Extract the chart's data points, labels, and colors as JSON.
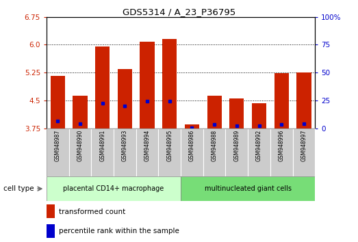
{
  "title": "GDS5314 / A_23_P36795",
  "samples": [
    "GSM948987",
    "GSM948990",
    "GSM948991",
    "GSM948993",
    "GSM948994",
    "GSM948995",
    "GSM948986",
    "GSM948988",
    "GSM948989",
    "GSM948992",
    "GSM948996",
    "GSM948997"
  ],
  "transformed_count": [
    5.17,
    4.62,
    5.96,
    5.35,
    6.08,
    6.15,
    3.85,
    4.62,
    4.55,
    4.42,
    5.23,
    5.25
  ],
  "percentile_rank": [
    3.95,
    3.88,
    4.42,
    4.36,
    4.48,
    4.48,
    3.77,
    3.85,
    3.82,
    3.82,
    3.85,
    3.88
  ],
  "group1_label": "placental CD14+ macrophage",
  "group2_label": "multinucleated giant cells",
  "group1_count": 6,
  "group2_count": 6,
  "ylim": [
    3.75,
    6.75
  ],
  "yticks_left": [
    3.75,
    4.5,
    5.25,
    6.0,
    6.75
  ],
  "yticks_right": [
    0,
    25,
    50,
    75,
    100
  ],
  "bar_color": "#cc2200",
  "marker_color": "#0000cc",
  "group1_bg": "#ccffcc",
  "group2_bg": "#77dd77",
  "sample_bg": "#cccccc",
  "legend_red": "transformed count",
  "legend_blue": "percentile rank within the sample",
  "cell_type_label": "cell type"
}
